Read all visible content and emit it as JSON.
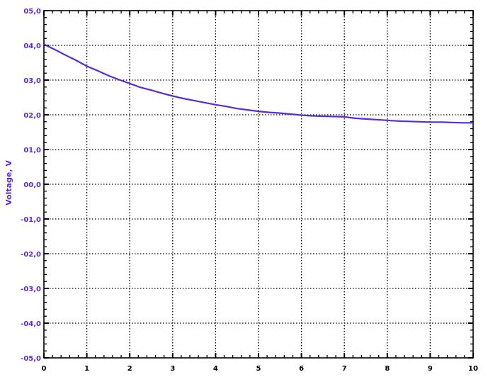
{
  "chart_data": {
    "type": "line",
    "title": "",
    "xlabel": "",
    "ylabel": "Voltage, V",
    "xlim": [
      0,
      10
    ],
    "ylim": [
      -5,
      5
    ],
    "grid": true,
    "x_ticks": [
      0,
      1,
      2,
      3,
      4,
      5,
      6,
      7,
      8,
      9,
      10
    ],
    "x_tick_labels": [
      "0",
      "1",
      "2",
      "3",
      "4",
      "5",
      "6",
      "7",
      "8",
      "9",
      "10"
    ],
    "y_ticks": [
      5,
      4,
      3,
      2,
      1,
      0,
      -1,
      -2,
      -3,
      -4,
      -5
    ],
    "y_tick_labels": [
      "05,0",
      "04,0",
      "03,0",
      "02,0",
      "01,0",
      "00,0",
      "-01,0",
      "-02,0",
      "-03,0",
      "-04,0",
      "-05,0"
    ],
    "series": [
      {
        "color": "#5a2bd8",
        "x": [
          0,
          0.05,
          0.25,
          0.5,
          0.75,
          1.0,
          1.25,
          1.5,
          1.75,
          2.0,
          2.25,
          2.5,
          2.75,
          3.0,
          3.25,
          3.5,
          3.75,
          4.0,
          4.25,
          4.5,
          4.75,
          5.0,
          5.25,
          5.5,
          5.75,
          6.0,
          6.25,
          6.5,
          6.75,
          7.0,
          7.25,
          7.5,
          7.75,
          8.0,
          8.25,
          8.5,
          8.75,
          9.0,
          9.25,
          9.5,
          9.75,
          10.0
        ],
        "y": [
          4.04,
          4.0,
          3.88,
          3.72,
          3.57,
          3.4,
          3.27,
          3.13,
          3.01,
          2.9,
          2.79,
          2.71,
          2.62,
          2.54,
          2.47,
          2.41,
          2.35,
          2.29,
          2.24,
          2.18,
          2.14,
          2.1,
          2.07,
          2.05,
          2.02,
          1.99,
          1.97,
          1.96,
          1.95,
          1.94,
          1.9,
          1.88,
          1.86,
          1.84,
          1.82,
          1.81,
          1.8,
          1.79,
          1.79,
          1.78,
          1.77,
          1.77
        ]
      }
    ]
  },
  "colors": {
    "curve": "#5a2bd8",
    "y_tick_labels": "#5a2bd8",
    "y_axis_title": "#5a2bd8",
    "x_tick_labels": "#000000",
    "grid": "#000000",
    "axes": "#000000"
  }
}
